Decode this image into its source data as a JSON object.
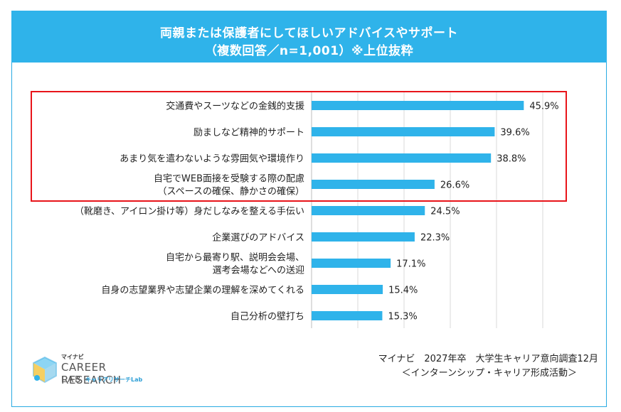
{
  "header": {
    "title_line1": "両親または保護者にしてほしいアドバイスやサポート",
    "title_line2": "（複数回答／n=1,001）※上位抜粋"
  },
  "chart_data": {
    "type": "bar",
    "orientation": "horizontal",
    "title": "両親または保護者にしてほしいアドバイスやサポート",
    "subtitle": "（複数回答／n=1,001）※上位抜粋",
    "categories": [
      [
        "交通費やスーツなどの金銭的支援"
      ],
      [
        "励ましなど精神的サポート"
      ],
      [
        "あまり気を遣わないような雰囲気や環境作り"
      ],
      [
        "自宅でWEB面接を受験する際の配慮",
        "（スペースの確保、静かさの確保）"
      ],
      [
        "（靴磨き、アイロン掛け等）身だしなみを整える手伝い"
      ],
      [
        "企業選びのアドバイス"
      ],
      [
        "自宅から最寄り駅、説明会会場、",
        "選考会場などへの送迎"
      ],
      [
        "自身の志望業界や志望企業の理解を深めてくれる"
      ],
      [
        "自己分析の壁打ち"
      ]
    ],
    "values": [
      45.9,
      39.6,
      38.8,
      26.6,
      24.5,
      22.3,
      17.1,
      15.4,
      15.3
    ],
    "value_labels": [
      "45.9%",
      "39.6%",
      "38.8%",
      "26.6%",
      "24.5%",
      "22.3%",
      "17.1%",
      "15.4%",
      "15.3%"
    ],
    "xlim": [
      0,
      50
    ],
    "grid": true,
    "highlighted_categories": [
      0,
      1,
      2,
      3
    ],
    "bar_color": "#2fb3ea",
    "highlight_box_color": "#e8141a"
  },
  "source": {
    "line1": "マイナビ　2027年卒　大学生キャリア意向調査12月",
    "line2": "＜インターンシップ・キャリア形成活動＞"
  },
  "logo": {
    "top": "マイナビ",
    "main": "CAREER RESEARCH",
    "lab": "LAB",
    "sub": "キャリアリサーチLab"
  }
}
